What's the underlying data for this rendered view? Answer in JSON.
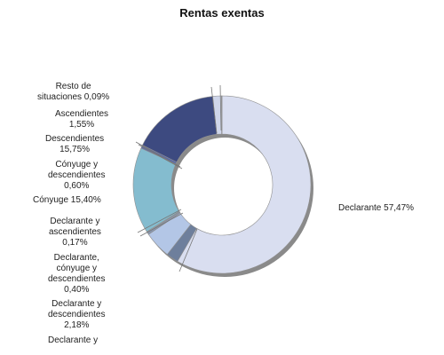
{
  "chart_data": {
    "type": "pie",
    "title": "Rentas exentas",
    "slices": [
      {
        "label": "Declarante",
        "value": 57.47,
        "display": "Declarante 57,47%",
        "color": "#d9def0"
      },
      {
        "label": "Declarante y descendientes",
        "value": 2.18,
        "display": "Declarante y descendientes 2,18%",
        "color": "#6e7f9c"
      },
      {
        "label": "Declarante y descendientes (otros)",
        "value": 4.86,
        "display": "Declarante y",
        "color": "#b3c6e6"
      },
      {
        "label": "Declarante, cónyuge y descendientes",
        "value": 0.4,
        "display": "Declarante, cónyuge y descendientes 0,40%",
        "color": "#8896b0"
      },
      {
        "label": "Declarante y ascendientes",
        "value": 0.17,
        "display": "Declarante y ascendientes 0,17%",
        "color": "#9aa7bc"
      },
      {
        "label": "Cónyuge",
        "value": 15.4,
        "display": "Cónyuge 15,40%",
        "color": "#84bccf"
      },
      {
        "label": "Cónyuge y descendientes",
        "value": 0.6,
        "display": "Cónyuge y descendientes 0,60%",
        "color": "#5a6aa8"
      },
      {
        "label": "Descendientes",
        "value": 15.75,
        "display": "Descendientes 15,75%",
        "color": "#3d4a80"
      },
      {
        "label": "Ascendientes",
        "value": 1.55,
        "display": "Ascendientes 1,55%",
        "color": "#cfd6ea"
      },
      {
        "label": "Resto de situaciones",
        "value": 0.09,
        "display": "Resto de situaciones 0,09%",
        "color": "#c3cbe0"
      }
    ]
  },
  "labels": {
    "declarante": "Declarante 57,47%",
    "resto_1": "Resto de",
    "resto_2": "situaciones 0,09%",
    "ascendientes_1": "Ascendientes",
    "ascendientes_2": "1,55%",
    "descendientes_1": "Descendientes",
    "descendientes_2": "15,75%",
    "cony_desc_1": "Cónyuge y",
    "cony_desc_2": "descendientes",
    "cony_desc_3": "0,60%",
    "conyuge": "Cónyuge 15,40%",
    "decl_asc_1": "Declarante y",
    "decl_asc_2": "ascendientes",
    "decl_asc_3": "0,17%",
    "decl_cony_1": "Declarante,",
    "decl_cony_2": "cónyuge y",
    "decl_cony_3": "descendientes",
    "decl_cony_4": "0,40%",
    "decl_desc_1": "Declarante y",
    "decl_desc_2": "descendientes",
    "decl_desc_3": "2,18%",
    "decl_y": "Declarante y"
  }
}
